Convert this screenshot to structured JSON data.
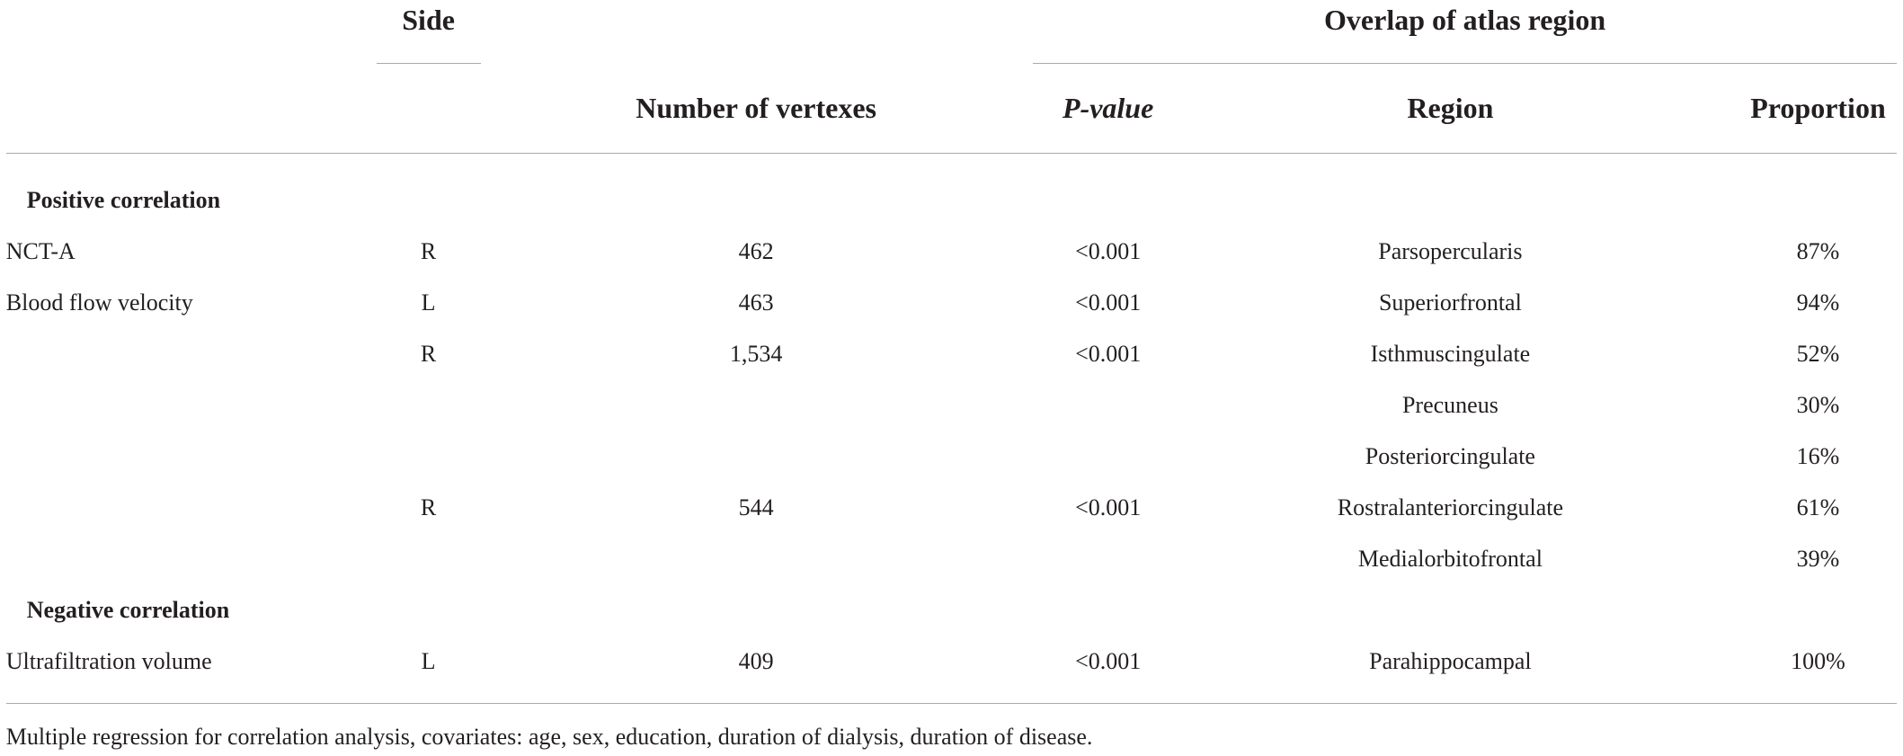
{
  "table": {
    "header": {
      "side": "Side",
      "overlap": "Overlap of atlas region",
      "columns": [
        "Number of vertexes",
        "P-value",
        "Region",
        "Proportion"
      ]
    },
    "sections": [
      {
        "title": "Positive correlation",
        "rows": [
          [
            "NCT-A",
            "R",
            "462",
            "<0.001",
            "Parsopercularis",
            "87%"
          ],
          [
            "Blood flow velocity",
            "L",
            "463",
            "<0.001",
            "Superiorfrontal",
            "94%"
          ],
          [
            null,
            "R",
            "1,534",
            "<0.001",
            "Isthmuscingulate",
            "52%"
          ],
          [
            null,
            null,
            null,
            null,
            "Precuneus",
            "30%"
          ],
          [
            null,
            null,
            null,
            null,
            "Posteriorcingulate",
            "16%"
          ],
          [
            null,
            "R",
            "544",
            "<0.001",
            "Rostralanteriorcingulate",
            "61%"
          ],
          [
            null,
            null,
            null,
            null,
            "Medialorbitofrontal",
            "39%"
          ]
        ]
      },
      {
        "title": "Negative correlation",
        "rows": [
          [
            "Ultrafiltration volume",
            "L",
            "409",
            "<0.001",
            "Parahippocampal",
            "100%"
          ]
        ]
      }
    ],
    "footnote": "Multiple regression for correlation analysis, covariates: age, sex, education, duration of dialysis, duration of disease."
  }
}
